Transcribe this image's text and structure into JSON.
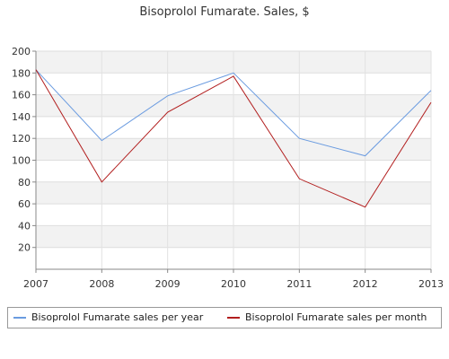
{
  "chart_data": {
    "type": "line",
    "title": "Bisoprolol Fumarate. Sales, $",
    "xlabel": "",
    "ylabel": "",
    "categories": [
      "2007",
      "2008",
      "2009",
      "2010",
      "2011",
      "2012",
      "2013"
    ],
    "ylim": [
      0,
      200
    ],
    "yticks": [
      20,
      40,
      60,
      80,
      100,
      120,
      140,
      160,
      180,
      200
    ],
    "grid": true,
    "legend_position": "bottom",
    "series": [
      {
        "name": "Bisoprolol Fumarate sales per year",
        "color": "#6a9be0",
        "values": [
          183,
          118,
          159,
          180,
          120,
          104,
          164
        ]
      },
      {
        "name": "Bisoprolol Fumarate sales per month",
        "color": "#b21e1e",
        "values": [
          183,
          80,
          144,
          177,
          83,
          57,
          153
        ]
      }
    ]
  }
}
